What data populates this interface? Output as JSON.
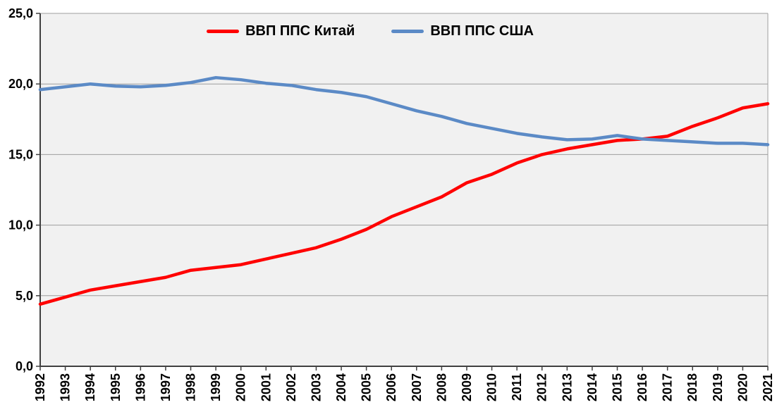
{
  "chart_data": {
    "type": "line",
    "categories": [
      "1992",
      "1993",
      "1994",
      "1995",
      "1996",
      "1997",
      "1998",
      "1999",
      "2000",
      "2001",
      "2002",
      "2003",
      "2004",
      "2005",
      "2006",
      "2007",
      "2008",
      "2009",
      "2010",
      "2011",
      "2012",
      "2013",
      "2014",
      "2015",
      "2016",
      "2017",
      "2018",
      "2019",
      "2020",
      "2021"
    ],
    "series": [
      {
        "name": "ВВП ППС Китай",
        "color": "#FF0000",
        "values": [
          4.4,
          4.9,
          5.4,
          5.7,
          6.0,
          6.3,
          6.8,
          7.0,
          7.2,
          7.6,
          8.0,
          8.4,
          9.0,
          9.7,
          10.6,
          11.3,
          12.0,
          13.0,
          13.6,
          14.4,
          15.0,
          15.4,
          15.7,
          16.0,
          16.1,
          16.3,
          17.0,
          17.6,
          18.3,
          18.6
        ]
      },
      {
        "name": "ВВП ППС США",
        "color": "#5B8AC6",
        "values": [
          19.6,
          19.8,
          20.0,
          19.85,
          19.8,
          19.9,
          20.1,
          20.45,
          20.3,
          20.05,
          19.9,
          19.6,
          19.4,
          19.1,
          18.6,
          18.1,
          17.7,
          17.2,
          16.85,
          16.5,
          16.25,
          16.05,
          16.1,
          16.35,
          16.1,
          16.0,
          15.9,
          15.8,
          15.8,
          15.7
        ]
      }
    ],
    "ylim": [
      0,
      25
    ],
    "ytick_step": 5,
    "ytick_labels": [
      "0,0",
      "5,0",
      "10,0",
      "15,0",
      "20,0",
      "25,0"
    ],
    "grid": true,
    "legend_position": "top-center",
    "colors": {
      "plot_background": "#F1F1F1",
      "gridline": "#9E9E9E",
      "axis": "#404040",
      "label_text": "#000000"
    }
  }
}
